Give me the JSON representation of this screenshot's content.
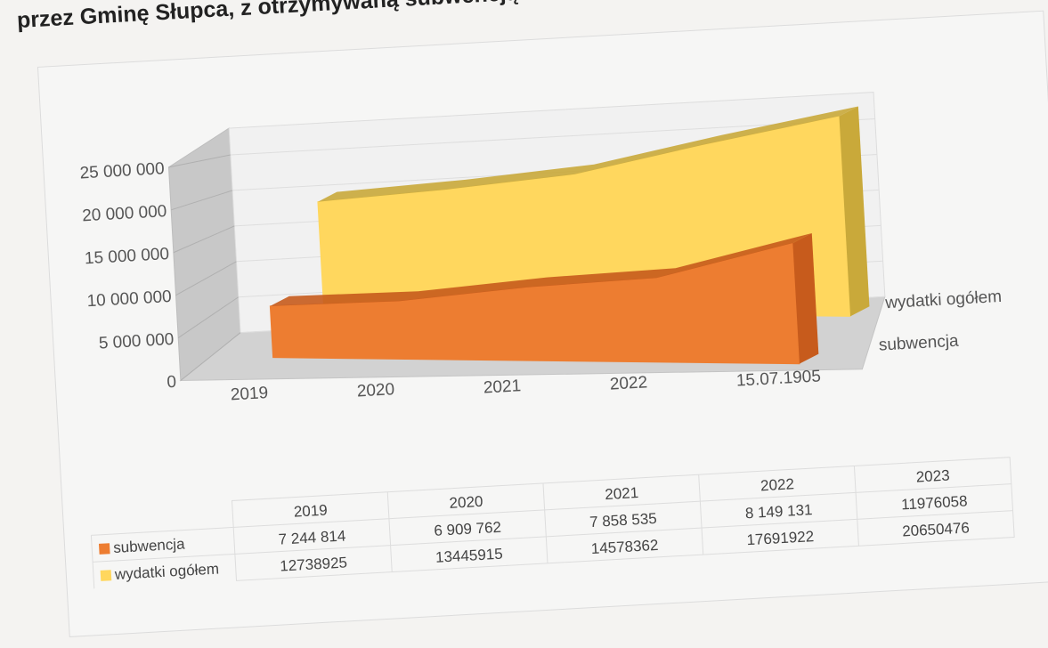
{
  "title": "przez Gminę Słupca, z otrzymywaną subwencją oświatow",
  "chart_data": {
    "type": "area",
    "subtype": "3d-area",
    "categories": [
      "2019",
      "2020",
      "2021",
      "2022",
      "15.07.1905"
    ],
    "table_categories": [
      "2019",
      "2020",
      "2021",
      "2022",
      "2023"
    ],
    "y_ticks": [
      "0",
      "5 000 000",
      "10 000 000",
      "15 000 000",
      "20 000 000",
      "25 000 000"
    ],
    "ylim": [
      0,
      25000000
    ],
    "grid": true,
    "series": [
      {
        "name": "subwencja",
        "values": [
          7244814,
          6909762,
          7858535,
          8149131,
          11976058
        ],
        "table_values": [
          "7 244 814",
          "6 909 762",
          "7 858 535",
          "8 149 131",
          "11976058"
        ],
        "color": "#ed7d31",
        "color_top": "#c75b1c"
      },
      {
        "name": "wydatki ogółem",
        "values": [
          12738925,
          13445915,
          14578362,
          17691922,
          20650476
        ],
        "table_values": [
          "12738925",
          "13445915",
          "14578362",
          "17691922",
          "20650476"
        ],
        "color": "#ffd75e",
        "color_top": "#c9a93a"
      }
    ],
    "legend": "data-table"
  }
}
